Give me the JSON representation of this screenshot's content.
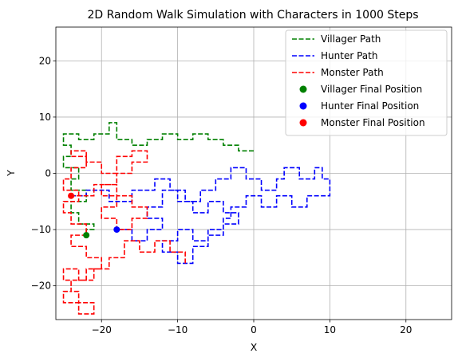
{
  "chart_data": {
    "type": "line",
    "title": "2D Random Walk Simulation with Characters in 1000 Steps",
    "xlabel": "X",
    "ylabel": "Y",
    "xlim": [
      -26,
      26
    ],
    "ylim": [
      -26,
      26
    ],
    "xticks": [
      -20,
      -10,
      0,
      10,
      20
    ],
    "yticks": [
      -20,
      -10,
      0,
      10,
      20
    ],
    "xtick_labels": [
      "−20",
      "−10",
      "0",
      "10",
      "20"
    ],
    "ytick_labels": [
      "−20",
      "−10",
      "0",
      "10",
      "20"
    ],
    "grid": true,
    "legend_position": "top-right",
    "series": [
      {
        "name": "Villager Path",
        "color": "#008000",
        "style": "dashed",
        "points": [
          [
            0,
            4
          ],
          [
            -2,
            4
          ],
          [
            -2,
            5
          ],
          [
            -4,
            5
          ],
          [
            -4,
            6
          ],
          [
            -6,
            6
          ],
          [
            -6,
            7
          ],
          [
            -8,
            7
          ],
          [
            -8,
            6
          ],
          [
            -10,
            6
          ],
          [
            -10,
            7
          ],
          [
            -12,
            7
          ],
          [
            -12,
            6
          ],
          [
            -14,
            6
          ],
          [
            -14,
            5
          ],
          [
            -16,
            5
          ],
          [
            -16,
            6
          ],
          [
            -18,
            6
          ],
          [
            -18,
            9
          ],
          [
            -19,
            9
          ],
          [
            -19,
            7
          ],
          [
            -21,
            7
          ],
          [
            -21,
            6
          ],
          [
            -23,
            6
          ],
          [
            -23,
            7
          ],
          [
            -25,
            7
          ],
          [
            -25,
            5
          ],
          [
            -24,
            5
          ],
          [
            -24,
            3
          ],
          [
            -25,
            3
          ],
          [
            -25,
            1
          ],
          [
            -23,
            1
          ],
          [
            -23,
            -1
          ],
          [
            -24,
            -1
          ],
          [
            -24,
            -3
          ],
          [
            -22,
            -3
          ],
          [
            -22,
            -5
          ],
          [
            -24,
            -5
          ],
          [
            -24,
            -7
          ],
          [
            -23,
            -7
          ],
          [
            -23,
            -9
          ],
          [
            -21,
            -9
          ],
          [
            -21,
            -10
          ],
          [
            -22,
            -10
          ],
          [
            -22,
            -11
          ]
        ]
      },
      {
        "name": "Hunter Path",
        "color": "#0000ff",
        "style": "dashed",
        "points": [
          [
            -24,
            -4
          ],
          [
            -22,
            -4
          ],
          [
            -22,
            -3
          ],
          [
            -19,
            -3
          ],
          [
            -19,
            -5
          ],
          [
            -16,
            -5
          ],
          [
            -16,
            -3
          ],
          [
            -13,
            -3
          ],
          [
            -13,
            -1
          ],
          [
            -11,
            -1
          ],
          [
            -11,
            -3
          ],
          [
            -9,
            -3
          ],
          [
            -9,
            -5
          ],
          [
            -7,
            -5
          ],
          [
            -7,
            -3
          ],
          [
            -5,
            -3
          ],
          [
            -5,
            -1
          ],
          [
            -3,
            -1
          ],
          [
            -3,
            1
          ],
          [
            -1,
            1
          ],
          [
            -1,
            -1
          ],
          [
            1,
            -1
          ],
          [
            1,
            -3
          ],
          [
            3,
            -3
          ],
          [
            3,
            -1
          ],
          [
            4,
            -1
          ],
          [
            4,
            1
          ],
          [
            6,
            1
          ],
          [
            6,
            -1
          ],
          [
            8,
            -1
          ],
          [
            8,
            1
          ],
          [
            9,
            1
          ],
          [
            9,
            -1
          ],
          [
            10,
            -1
          ],
          [
            10,
            -4
          ],
          [
            7,
            -4
          ],
          [
            7,
            -6
          ],
          [
            5,
            -6
          ],
          [
            5,
            -4
          ],
          [
            3,
            -4
          ],
          [
            3,
            -6
          ],
          [
            1,
            -6
          ],
          [
            1,
            -4
          ],
          [
            -1,
            -4
          ],
          [
            -1,
            -6
          ],
          [
            -3,
            -6
          ],
          [
            -3,
            -8
          ],
          [
            -4,
            -8
          ],
          [
            -4,
            -10
          ],
          [
            -6,
            -10
          ],
          [
            -6,
            -12
          ],
          [
            -8,
            -12
          ],
          [
            -8,
            -10
          ],
          [
            -10,
            -10
          ],
          [
            -10,
            -12
          ],
          [
            -12,
            -12
          ],
          [
            -12,
            -14
          ],
          [
            -10,
            -14
          ],
          [
            -10,
            -16
          ],
          [
            -8,
            -16
          ],
          [
            -8,
            -13
          ],
          [
            -6,
            -13
          ],
          [
            -6,
            -11
          ],
          [
            -4,
            -11
          ],
          [
            -4,
            -9
          ],
          [
            -2,
            -9
          ],
          [
            -2,
            -7
          ],
          [
            -4,
            -7
          ],
          [
            -4,
            -5
          ],
          [
            -6,
            -5
          ],
          [
            -6,
            -7
          ],
          [
            -8,
            -7
          ],
          [
            -8,
            -5
          ],
          [
            -10,
            -5
          ],
          [
            -10,
            -3
          ],
          [
            -12,
            -3
          ],
          [
            -12,
            -6
          ],
          [
            -14,
            -6
          ],
          [
            -14,
            -8
          ],
          [
            -12,
            -8
          ],
          [
            -12,
            -10
          ],
          [
            -14,
            -10
          ],
          [
            -14,
            -12
          ],
          [
            -16,
            -12
          ],
          [
            -16,
            -10
          ],
          [
            -18,
            -10
          ]
        ]
      },
      {
        "name": "Monster Path",
        "color": "#ff0000",
        "style": "dashed",
        "points": [
          [
            -9,
            -16
          ],
          [
            -9,
            -14
          ],
          [
            -11,
            -14
          ],
          [
            -11,
            -12
          ],
          [
            -13,
            -12
          ],
          [
            -13,
            -14
          ],
          [
            -15,
            -14
          ],
          [
            -15,
            -12
          ],
          [
            -17,
            -12
          ],
          [
            -17,
            -15
          ],
          [
            -19,
            -15
          ],
          [
            -19,
            -17
          ],
          [
            -21,
            -17
          ],
          [
            -21,
            -19
          ],
          [
            -23,
            -19
          ],
          [
            -23,
            -17
          ],
          [
            -25,
            -17
          ],
          [
            -25,
            -19
          ],
          [
            -24,
            -19
          ],
          [
            -24,
            -21
          ],
          [
            -25,
            -21
          ],
          [
            -25,
            -23
          ],
          [
            -23,
            -23
          ],
          [
            -23,
            -25
          ],
          [
            -21,
            -25
          ],
          [
            -21,
            -23
          ],
          [
            -23,
            -23
          ],
          [
            -23,
            -21
          ],
          [
            -24,
            -21
          ],
          [
            -24,
            -19
          ],
          [
            -22,
            -19
          ],
          [
            -22,
            -17
          ],
          [
            -20,
            -17
          ],
          [
            -20,
            -15
          ],
          [
            -22,
            -15
          ],
          [
            -22,
            -13
          ],
          [
            -24,
            -13
          ],
          [
            -24,
            -11
          ],
          [
            -22,
            -11
          ],
          [
            -22,
            -9
          ],
          [
            -24,
            -9
          ],
          [
            -24,
            -7
          ],
          [
            -25,
            -7
          ],
          [
            -25,
            -5
          ],
          [
            -23,
            -5
          ],
          [
            -23,
            -3
          ],
          [
            -25,
            -3
          ],
          [
            -25,
            -1
          ],
          [
            -24,
            -1
          ],
          [
            -24,
            1
          ],
          [
            -22,
            1
          ],
          [
            -22,
            3
          ],
          [
            -24,
            3
          ],
          [
            -24,
            4
          ],
          [
            -22,
            4
          ],
          [
            -22,
            2
          ],
          [
            -20,
            2
          ],
          [
            -20,
            0
          ],
          [
            -18,
            0
          ],
          [
            -18,
            3
          ],
          [
            -16,
            3
          ],
          [
            -16,
            4
          ],
          [
            -14,
            4
          ],
          [
            -14,
            2
          ],
          [
            -16,
            2
          ],
          [
            -16,
            0
          ],
          [
            -18,
            0
          ],
          [
            -18,
            -2
          ],
          [
            -20,
            -2
          ],
          [
            -20,
            -4
          ],
          [
            -18,
            -4
          ],
          [
            -18,
            -6
          ],
          [
            -20,
            -6
          ],
          [
            -20,
            -8
          ],
          [
            -18,
            -8
          ],
          [
            -18,
            -10
          ],
          [
            -16,
            -10
          ],
          [
            -16,
            -8
          ],
          [
            -14,
            -8
          ],
          [
            -14,
            -6
          ],
          [
            -16,
            -6
          ],
          [
            -16,
            -4
          ],
          [
            -18,
            -4
          ],
          [
            -18,
            -2
          ],
          [
            -21,
            -2
          ],
          [
            -21,
            -4
          ],
          [
            -24,
            -4
          ]
        ]
      }
    ],
    "markers": [
      {
        "name": "Villager Final Position",
        "color": "#008000",
        "x": -22,
        "y": -11
      },
      {
        "name": "Hunter Final Position",
        "color": "#0000ff",
        "x": -18,
        "y": -10
      },
      {
        "name": "Monster Final Position",
        "color": "#ff0000",
        "x": -24,
        "y": -4
      }
    ]
  }
}
